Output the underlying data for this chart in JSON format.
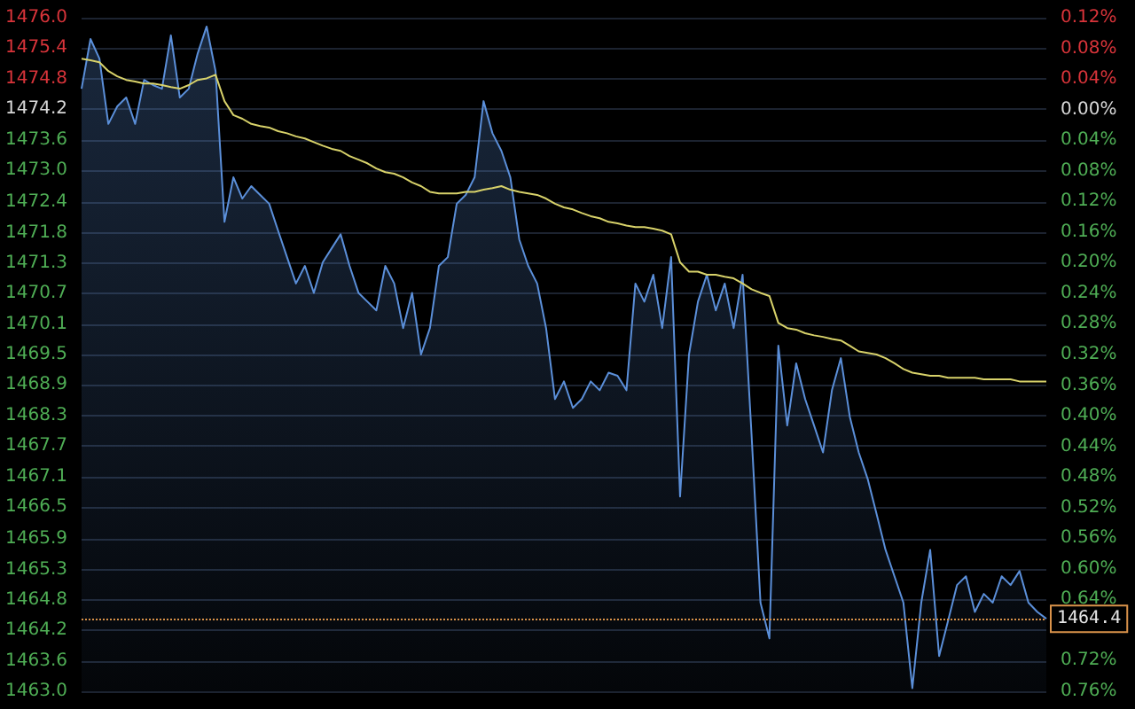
{
  "chart_data": {
    "type": "line",
    "categories": [
      null,
      null,
      null,
      null,
      null,
      null,
      null,
      null,
      null,
      null,
      null,
      null,
      null,
      null,
      null,
      null,
      null,
      null,
      null,
      null,
      null,
      null,
      null,
      null,
      null,
      null,
      null,
      null,
      null,
      null,
      null,
      null,
      null,
      null,
      null,
      null,
      null,
      null,
      null,
      null,
      null,
      null,
      null,
      null,
      null,
      null,
      null,
      null,
      null,
      null,
      null,
      null,
      null,
      null,
      null,
      null,
      null,
      null,
      null,
      null,
      null,
      null,
      null,
      null,
      null,
      null,
      null,
      null,
      null,
      null,
      null,
      null,
      null,
      null,
      null,
      null,
      null,
      null,
      null,
      null,
      null,
      null,
      null,
      null,
      null,
      null,
      null,
      null,
      null,
      null,
      null,
      null,
      null,
      null,
      null,
      null,
      null,
      null,
      null,
      null,
      null,
      null,
      null,
      null,
      null,
      null,
      null,
      null,
      null
    ],
    "series": [
      {
        "type": "area",
        "color": "#5b8fd9",
        "values": [
          1474.63,
          1475.59,
          1475.21,
          1473.95,
          1474.29,
          1474.46,
          1473.95,
          1474.8,
          1474.7,
          1474.63,
          1475.66,
          1474.46,
          1474.63,
          1475.31,
          1475.83,
          1474.97,
          1472.06,
          1472.92,
          1472.51,
          1472.75,
          1472.58,
          1472.41,
          1471.89,
          1471.38,
          1470.87,
          1471.21,
          1470.69,
          1471.28,
          1471.55,
          1471.82,
          1471.21,
          1470.69,
          1470.52,
          1470.35,
          1471.21,
          1470.87,
          1470.01,
          1470.69,
          1469.5,
          1470.01,
          1471.21,
          1471.38,
          1472.41,
          1472.58,
          1472.92,
          1474.39,
          1473.77,
          1473.43,
          1472.92,
          1471.72,
          1471.21,
          1470.87,
          1470.01,
          1468.64,
          1468.98,
          1468.47,
          1468.64,
          1468.98,
          1468.81,
          1469.15,
          1469.09,
          1468.81,
          1470.87,
          1470.52,
          1471.04,
          1470.01,
          1471.38,
          1466.76,
          1469.5,
          1470.52,
          1471.04,
          1470.35,
          1470.87,
          1470.01,
          1471.04,
          1467.96,
          1464.71,
          1464.02,
          1469.67,
          1468.13,
          1469.33,
          1468.64,
          1468.13,
          1467.61,
          1468.81,
          1469.43,
          1468.3,
          1467.61,
          1467.1,
          1466.42,
          1465.73,
          1465.22,
          1464.71,
          1463.06,
          1464.71,
          1465.73,
          1463.68,
          1464.36,
          1465.05,
          1465.22,
          1464.53,
          1464.88,
          1464.71,
          1465.22,
          1465.05,
          1465.32,
          1464.71,
          1464.53,
          1464.4
        ]
      },
      {
        "type": "line",
        "color": "#d8d26a",
        "values": [
          1475.21,
          1475.18,
          1475.14,
          1474.97,
          1474.87,
          1474.8,
          1474.77,
          1474.73,
          1474.73,
          1474.7,
          1474.66,
          1474.63,
          1474.7,
          1474.8,
          1474.83,
          1474.9,
          1474.39,
          1474.12,
          1474.05,
          1473.95,
          1473.91,
          1473.88,
          1473.81,
          1473.77,
          1473.71,
          1473.67,
          1473.6,
          1473.53,
          1473.47,
          1473.43,
          1473.33,
          1473.26,
          1473.19,
          1473.09,
          1473.02,
          1472.99,
          1472.92,
          1472.82,
          1472.75,
          1472.64,
          1472.61,
          1472.61,
          1472.61,
          1472.64,
          1472.64,
          1472.68,
          1472.71,
          1472.75,
          1472.68,
          1472.64,
          1472.61,
          1472.58,
          1472.51,
          1472.41,
          1472.34,
          1472.3,
          1472.23,
          1472.17,
          1472.13,
          1472.06,
          1472.03,
          1471.99,
          1471.96,
          1471.96,
          1471.93,
          1471.89,
          1471.82,
          1471.28,
          1471.1,
          1471.1,
          1471.04,
          1471.04,
          1471.0,
          1470.97,
          1470.87,
          1470.76,
          1470.69,
          1470.63,
          1470.11,
          1470.01,
          1469.98,
          1469.91,
          1469.87,
          1469.84,
          1469.8,
          1469.77,
          1469.67,
          1469.56,
          1469.53,
          1469.5,
          1469.43,
          1469.33,
          1469.22,
          1469.15,
          1469.12,
          1469.09,
          1469.09,
          1469.05,
          1469.05,
          1469.05,
          1469.05,
          1469.02,
          1469.02,
          1469.02,
          1469.02,
          1468.98,
          1468.98,
          1468.98,
          1468.98
        ]
      }
    ],
    "ylim": [
      1463.0,
      1476.0
    ],
    "yticks": [
      {
        "value": 1476.0,
        "label": "1476.0"
      },
      {
        "value": 1475.41,
        "label": "1475.4"
      },
      {
        "value": 1474.82,
        "label": "1474.8"
      },
      {
        "value": 1474.23,
        "label": "1474.2"
      },
      {
        "value": 1473.64,
        "label": "1473.6"
      },
      {
        "value": 1473.05,
        "label": "1473.0"
      },
      {
        "value": 1472.45,
        "label": "1472.4"
      },
      {
        "value": 1471.84,
        "label": "1471.8"
      },
      {
        "value": 1471.27,
        "label": "1471.3"
      },
      {
        "value": 1470.68,
        "label": "1470.7"
      },
      {
        "value": 1470.09,
        "label": "1470.1"
      },
      {
        "value": 1469.5,
        "label": "1469.5"
      },
      {
        "value": 1468.91,
        "label": "1468.9"
      },
      {
        "value": 1468.32,
        "label": "1468.3"
      },
      {
        "value": 1467.73,
        "label": "1467.7"
      },
      {
        "value": 1467.14,
        "label": "1467.1"
      },
      {
        "value": 1466.55,
        "label": "1466.5"
      },
      {
        "value": 1465.95,
        "label": "1465.9"
      },
      {
        "value": 1465.34,
        "label": "1465.3"
      },
      {
        "value": 1464.77,
        "label": "1464.8"
      },
      {
        "value": 1464.18,
        "label": "1464.2"
      },
      {
        "value": 1463.59,
        "label": "1463.6"
      },
      {
        "value": 1463.0,
        "label": "1463.0"
      }
    ],
    "y2lim": [
      -0.76,
      0.12
    ],
    "y2ticks": [
      {
        "value": 0.12,
        "label": "0.12%"
      },
      {
        "value": 0.08,
        "label": "0.08%"
      },
      {
        "value": 0.04,
        "label": "0.04%"
      },
      {
        "value": 0,
        "label": "0.00%"
      },
      {
        "value": -0.04,
        "label": "0.04%"
      },
      {
        "value": -0.08,
        "label": "0.08%"
      },
      {
        "value": -0.12,
        "label": "0.12%"
      },
      {
        "value": -0.16,
        "label": "0.16%"
      },
      {
        "value": -0.2,
        "label": "0.20%"
      },
      {
        "value": -0.24,
        "label": "0.24%"
      },
      {
        "value": -0.28,
        "label": "0.28%"
      },
      {
        "value": -0.32,
        "label": "0.32%"
      },
      {
        "value": -0.36,
        "label": "0.36%"
      },
      {
        "value": -0.4,
        "label": "0.40%"
      },
      {
        "value": -0.44,
        "label": "0.44%"
      },
      {
        "value": -0.48,
        "label": "0.48%"
      },
      {
        "value": -0.52,
        "label": "0.52%"
      },
      {
        "value": -0.56,
        "label": "0.56%"
      },
      {
        "value": -0.6,
        "label": "0.60%"
      },
      {
        "value": -0.64,
        "label": "0.64%"
      },
      {
        "value": -0.68,
        "label": null
      },
      {
        "value": -0.72,
        "label": "0.72%"
      },
      {
        "value": -0.76,
        "label": "0.76%"
      }
    ],
    "ref_lines": [
      {
        "axis": "y",
        "value": 1464.4,
        "label": "1464.4",
        "color": "#d9924a",
        "line_style": "dotted"
      }
    ],
    "grid": "y",
    "marker": "none"
  }
}
